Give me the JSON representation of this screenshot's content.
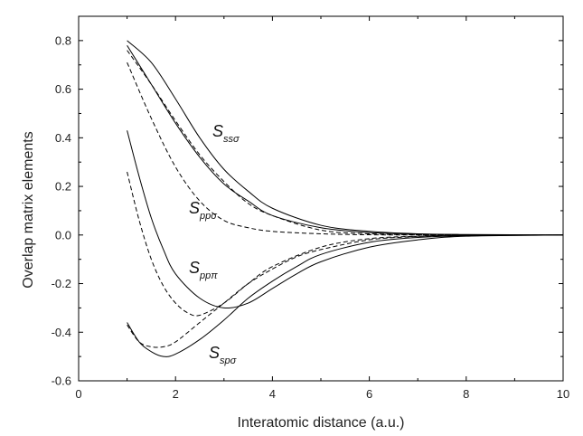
{
  "chart_data": {
    "type": "line",
    "title": "",
    "xlabel": "Interatomic distance (a.u.)",
    "ylabel": "Overlap matrix elements",
    "xlim": [
      0,
      10
    ],
    "ylim": [
      -0.6,
      0.9
    ],
    "xticks": [
      0,
      2,
      4,
      6,
      8,
      10
    ],
    "yticks": [
      -0.6,
      -0.4,
      -0.2,
      0.0,
      0.2,
      0.4,
      0.6,
      0.8
    ],
    "ytick_labels": [
      "-0.6",
      "-0.4",
      "-0.2",
      "0.0",
      "0.2",
      "0.4",
      "0.6",
      "0.8"
    ],
    "xtick_labels": [
      "0",
      "2",
      "4",
      "6",
      "8",
      "10"
    ],
    "grid": false,
    "legend": "none",
    "annotations": [
      {
        "main": "S",
        "sub": "ssσ"
      },
      {
        "main": "S",
        "sub": "ppσ"
      },
      {
        "main": "S",
        "sub": "ppπ"
      },
      {
        "main": "S",
        "sub": "spσ"
      }
    ],
    "series": [
      {
        "style": "solid",
        "x": [
          1.0,
          1.5,
          2.0,
          2.5,
          3.0,
          3.5,
          4.0,
          5.0,
          6.0,
          7.0,
          8.0,
          10.0
        ],
        "values": [
          0.8,
          0.71,
          0.56,
          0.4,
          0.27,
          0.18,
          0.11,
          0.04,
          0.015,
          0.005,
          0.002,
          0.0
        ]
      },
      {
        "style": "solid",
        "x": [
          1.0,
          1.5,
          2.0,
          2.5,
          3.0,
          3.5,
          4.0,
          5.0,
          6.0,
          7.0,
          8.0,
          10.0
        ],
        "values": [
          0.78,
          0.62,
          0.46,
          0.32,
          0.21,
          0.14,
          0.08,
          0.03,
          0.01,
          0.004,
          0.001,
          0.0
        ]
      },
      {
        "style": "dashed",
        "x": [
          1.0,
          1.5,
          2.0,
          2.5,
          3.0,
          3.5,
          4.0,
          5.0,
          6.0,
          7.0,
          8.0,
          10.0
        ],
        "values": [
          0.76,
          0.62,
          0.47,
          0.33,
          0.22,
          0.13,
          0.08,
          0.02,
          0.005,
          0.001,
          0.0,
          0.0
        ]
      },
      {
        "style": "dashed",
        "x": [
          1.0,
          1.5,
          2.0,
          2.5,
          3.0,
          3.5,
          4.0,
          5.0,
          6.0,
          7.0,
          8.0,
          10.0
        ],
        "values": [
          0.71,
          0.48,
          0.28,
          0.14,
          0.06,
          0.03,
          0.015,
          0.005,
          0.001,
          0.0,
          0.0,
          0.0
        ]
      },
      {
        "style": "solid",
        "x": [
          1.0,
          1.25,
          1.5,
          1.75,
          2.0,
          2.5,
          3.0,
          3.5,
          4.0,
          4.5,
          5.0,
          6.0,
          7.0,
          8.0,
          10.0
        ],
        "values": [
          0.43,
          0.24,
          0.07,
          -0.06,
          -0.16,
          -0.26,
          -0.3,
          -0.28,
          -0.22,
          -0.16,
          -0.11,
          -0.05,
          -0.02,
          -0.005,
          0.0
        ]
      },
      {
        "style": "dashed",
        "x": [
          1.0,
          1.25,
          1.5,
          1.75,
          2.0,
          2.25,
          2.5,
          3.0,
          3.5,
          4.0,
          5.0,
          6.0,
          7.0,
          8.0,
          10.0
        ],
        "values": [
          0.26,
          0.06,
          -0.1,
          -0.21,
          -0.28,
          -0.32,
          -0.33,
          -0.28,
          -0.2,
          -0.13,
          -0.05,
          -0.015,
          -0.005,
          -0.001,
          0.0
        ]
      },
      {
        "style": "solid",
        "x": [
          1.0,
          1.25,
          1.5,
          1.75,
          2.0,
          2.5,
          3.0,
          3.5,
          4.0,
          4.5,
          5.0,
          6.0,
          7.0,
          8.0,
          10.0
        ],
        "values": [
          -0.36,
          -0.44,
          -0.48,
          -0.5,
          -0.49,
          -0.43,
          -0.35,
          -0.26,
          -0.19,
          -0.13,
          -0.08,
          -0.03,
          -0.01,
          -0.003,
          0.0
        ]
      },
      {
        "style": "dashed",
        "x": [
          1.0,
          1.25,
          1.5,
          1.75,
          2.0,
          2.5,
          3.0,
          3.5,
          4.0,
          4.5,
          5.0,
          6.0,
          7.0,
          8.0,
          10.0
        ],
        "values": [
          -0.37,
          -0.44,
          -0.46,
          -0.46,
          -0.44,
          -0.36,
          -0.28,
          -0.2,
          -0.14,
          -0.09,
          -0.06,
          -0.02,
          -0.006,
          -0.002,
          0.0
        ]
      }
    ]
  }
}
